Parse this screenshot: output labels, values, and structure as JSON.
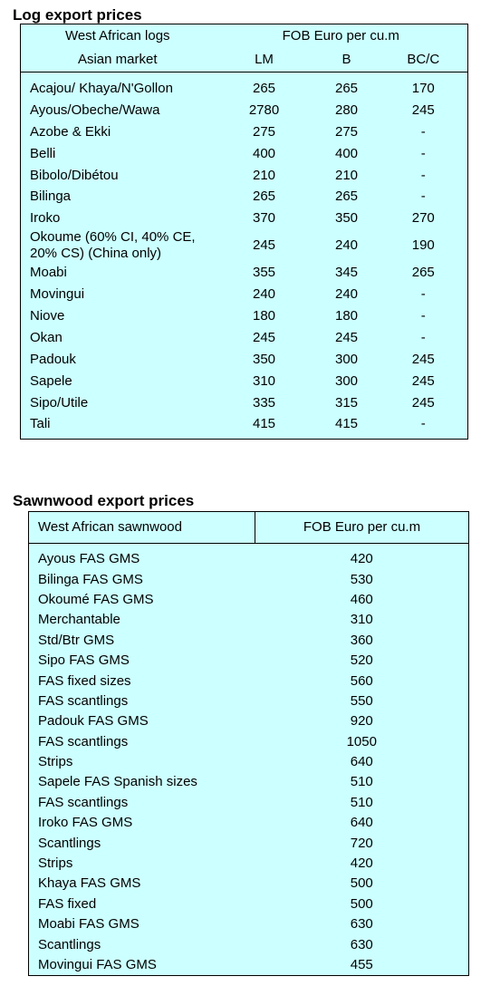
{
  "log_section": {
    "title": "Log export prices",
    "header": {
      "col1_top": "West African logs",
      "col2_top": "FOB Euro per cu.m",
      "col1_bottom": "Asian market",
      "lm": "LM",
      "b": "B",
      "bcc": "BC/C"
    },
    "rows": [
      {
        "name": "Acajou/ Khaya/N'Gollon",
        "lm": "265",
        "b": "265",
        "bcc": "170"
      },
      {
        "name": "Ayous/Obeche/Wawa",
        "lm": "2780",
        "b": "280",
        "bcc": "245"
      },
      {
        "name": "Azobe & Ekki",
        "lm": "275",
        "b": "275",
        "bcc": "-"
      },
      {
        "name": "Belli",
        "lm": "400",
        "b": "400",
        "bcc": "-"
      },
      {
        "name": "Bibolo/Dibétou",
        "lm": "210",
        "b": "210",
        "bcc": "-"
      },
      {
        "name": "Bilinga",
        "lm": "265",
        "b": "265",
        "bcc": "-"
      },
      {
        "name": "Iroko",
        "lm": "370",
        "b": "350",
        "bcc": "270"
      },
      {
        "name": "Okoume (60% CI, 40% CE, 20% CS) (China only)",
        "lm": "245",
        "b": "240",
        "bcc": "190"
      },
      {
        "name": "Moabi",
        "lm": "355",
        "b": "345",
        "bcc": "265"
      },
      {
        "name": "Movingui",
        "lm": "240",
        "b": "240",
        "bcc": "-"
      },
      {
        "name": "Niove",
        "lm": "180",
        "b": "180",
        "bcc": "-"
      },
      {
        "name": "Okan",
        "lm": "245",
        "b": "245",
        "bcc": "-"
      },
      {
        "name": "Padouk",
        "lm": "350",
        "b": "300",
        "bcc": "245"
      },
      {
        "name": "Sapele",
        "lm": "310",
        "b": "300",
        "bcc": "245"
      },
      {
        "name": "Sipo/Utile",
        "lm": "335",
        "b": "315",
        "bcc": "245"
      },
      {
        "name": "Tali",
        "lm": "415",
        "b": "415",
        "bcc": "-"
      }
    ]
  },
  "sawn_section": {
    "title": "Sawnwood export prices",
    "header": {
      "col1": "West African sawnwood",
      "col2": "FOB Euro per cu.m"
    },
    "rows": [
      {
        "name": "Ayous FAS GMS",
        "price": "420"
      },
      {
        "name": "Bilinga FAS GMS",
        "price": "530"
      },
      {
        "name": "Okoumé FAS GMS",
        "price": "460"
      },
      {
        "name": "Merchantable",
        "price": "310"
      },
      {
        "name": "Std/Btr GMS",
        "price": "360"
      },
      {
        "name": "Sipo FAS GMS",
        "price": "520"
      },
      {
        "name": "FAS fixed sizes",
        "price": "560"
      },
      {
        "name": "FAS scantlings",
        "price": "550"
      },
      {
        "name": "Padouk FAS GMS",
        "price": "920"
      },
      {
        "name": "FAS scantlings",
        "price": "1050"
      },
      {
        "name": "Strips",
        "price": "640"
      },
      {
        "name": "Sapele FAS Spanish sizes",
        "price": "510"
      },
      {
        "name": "FAS scantlings",
        "price": "510"
      },
      {
        "name": "Iroko FAS GMS",
        "price": "640"
      },
      {
        "name": "Scantlings",
        "price": "720"
      },
      {
        "name": "Strips",
        "price": "420"
      },
      {
        "name": "Khaya FAS GMS",
        "price": "500"
      },
      {
        "name": "FAS fixed",
        "price": "500"
      },
      {
        "name": "Moabi FAS GMS",
        "price": "630"
      },
      {
        "name": "Scantlings",
        "price": "630"
      },
      {
        "name": "Movingui FAS GMS",
        "price": "455"
      }
    ]
  }
}
